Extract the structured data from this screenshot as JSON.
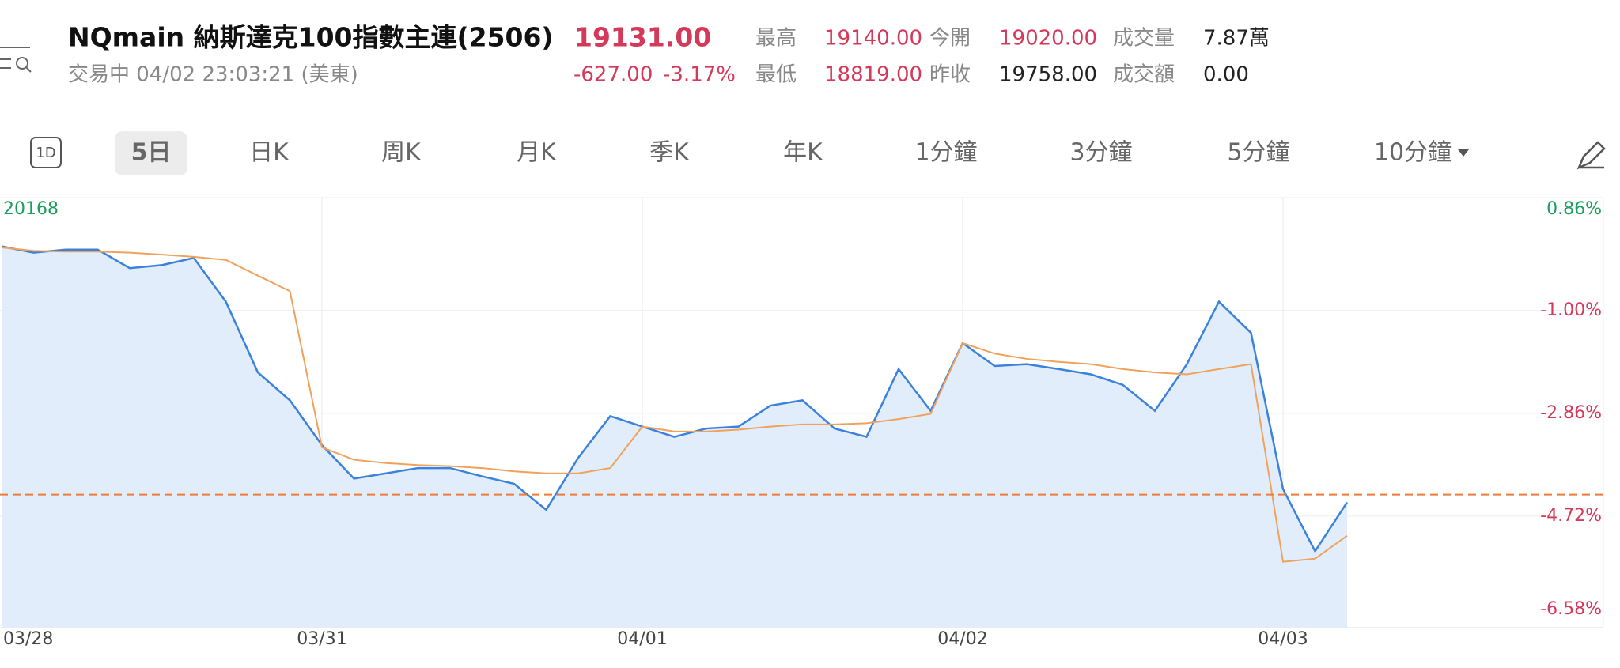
{
  "header": {
    "symbol_title": "NQmain 納斯達克100指數主連(2506)",
    "price": "19131.00",
    "status": "交易中 04/02 23:03:21 (美東)",
    "change": "-627.00",
    "change_pct": "-3.17%",
    "stats": [
      {
        "label": "最高",
        "value": "19140.00"
      },
      {
        "label": "今開",
        "value": "19020.00"
      },
      {
        "label": "成交量",
        "value": "7.87萬"
      },
      {
        "label": "最低",
        "value": "18819.00"
      },
      {
        "label": "昨收",
        "value": "19758.00"
      },
      {
        "label": "成交額",
        "value": "0.00"
      }
    ]
  },
  "tabs": {
    "icon": "1D",
    "items": [
      "5日",
      "日K",
      "周K",
      "月K",
      "季K",
      "年K",
      "1分鐘",
      "3分鐘",
      "5分鐘",
      "10分鐘"
    ],
    "selected": 0
  },
  "chart_data": {
    "type": "line",
    "categories": [
      "03/28",
      null,
      null,
      null,
      null,
      null,
      null,
      null,
      null,
      null,
      "03/31",
      null,
      null,
      null,
      null,
      null,
      null,
      null,
      null,
      null,
      "04/01",
      null,
      null,
      null,
      null,
      null,
      null,
      null,
      null,
      null,
      "04/02",
      null,
      null,
      null,
      null,
      null,
      null,
      null,
      null,
      null,
      "04/03",
      null,
      null,
      null,
      null,
      null,
      null,
      null,
      null,
      null
    ],
    "series": [
      {
        "color": "#3b82dc",
        "fill": "#e2edfb",
        "values": [
          20029,
          20006,
          20017,
          20017,
          19950,
          19961,
          19987,
          19829,
          19573,
          19472,
          19310,
          19189,
          19208,
          19227,
          19227,
          19197,
          19170,
          19076,
          19264,
          19415,
          19377,
          19340,
          19370,
          19377,
          19453,
          19472,
          19370,
          19340,
          19585,
          19434,
          19679,
          19596,
          19603,
          19585,
          19566,
          19528,
          19434,
          19603,
          19829,
          19716,
          19151,
          18926,
          19103,
          null,
          null,
          null,
          null,
          null,
          null,
          null
        ]
      },
      {
        "color": "#f0a25c",
        "values": [
          20025,
          20013,
          20010,
          20010,
          20006,
          19999,
          19991,
          19980,
          19923,
          19867,
          19302,
          19257,
          19245,
          19238,
          19234,
          19227,
          19215,
          19208,
          19208,
          19227,
          19377,
          19359,
          19359,
          19366,
          19377,
          19385,
          19385,
          19389,
          19404,
          19423,
          19679,
          19641,
          19622,
          19611,
          19603,
          19585,
          19573,
          19566,
          19585,
          19603,
          18888,
          18899,
          18982,
          null,
          null,
          null,
          null,
          null,
          null,
          null
        ]
      }
    ],
    "ylim": [
      18681,
      20168
    ],
    "yticks": [
      18681,
      19053,
      19425,
      19797,
      20168
    ],
    "y2lim": [
      -6.58,
      0.86
    ],
    "y2ticks": [
      {
        "value": -6.58,
        "label": "-6.58%"
      },
      {
        "value": -4.72,
        "label": "-4.72%"
      },
      {
        "value": -2.86,
        "label": "-2.86%"
      },
      {
        "value": -1.0,
        "label": "-1.00%"
      },
      {
        "value": 0.86,
        "label": "0.86%"
      }
    ],
    "reference_line": 19131,
    "reference_color": "#ee7a3a",
    "grid": true,
    "up_color": "#1a9e5c",
    "down_color": "#d4395a"
  }
}
